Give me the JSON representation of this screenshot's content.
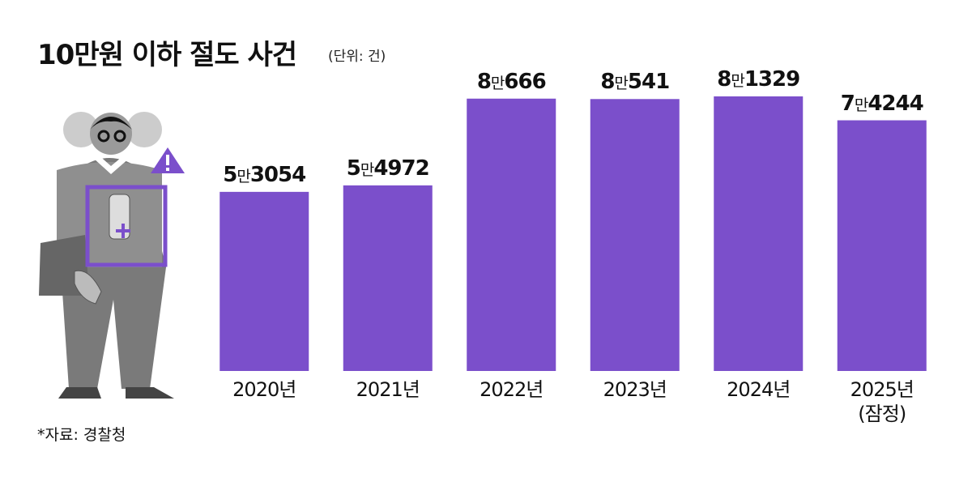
{
  "title": "10만원 이하 절도 사건",
  "subtitle": "(단위: 건)",
  "source": "*자료: 경찰청",
  "chart_data": {
    "type": "bar",
    "categories": [
      "2020년",
      "2021년",
      "2022년",
      "2023년",
      "2024년",
      "2025년\n(잠정)"
    ],
    "values": [
      53054,
      54972,
      80666,
      80541,
      81329,
      74244
    ],
    "value_labels": [
      "5만3054",
      "5만4972",
      "8만666",
      "8만541",
      "8만1329",
      "7만4244"
    ],
    "color": "#7b4fcb"
  }
}
